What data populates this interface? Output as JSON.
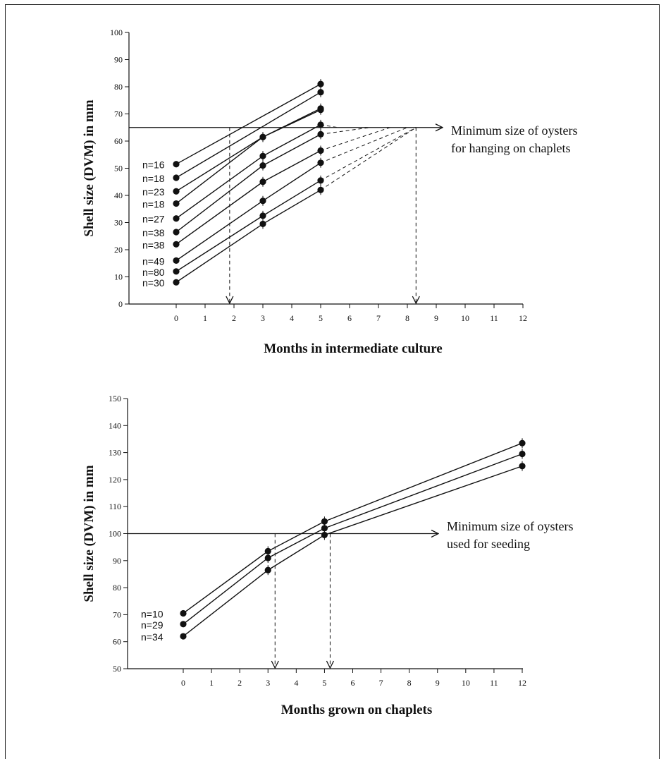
{
  "chart_data": [
    {
      "type": "line",
      "xlabel": "Months in intermediate culture",
      "ylabel": "Shell size (DVM) in mm",
      "xticks": [
        0,
        1,
        2,
        3,
        4,
        5,
        6,
        7,
        8,
        9,
        10,
        11,
        12
      ],
      "yticks": [
        0,
        10,
        20,
        30,
        40,
        50,
        60,
        70,
        80,
        90,
        100
      ],
      "xlim": [
        -1.6,
        12
      ],
      "ylim": [
        0,
        100
      ],
      "threshold": {
        "y": 65,
        "label_line1": "Minimum size of oysters",
        "label_line2": "for hanging on chaplets"
      },
      "drop_lines": [
        1.85,
        8.3
      ],
      "series": [
        {
          "name": "n=16",
          "x": [
            0,
            5
          ],
          "y": [
            51.5,
            81
          ]
        },
        {
          "name": "n=18",
          "x": [
            0,
            5
          ],
          "y": [
            46.5,
            78
          ]
        },
        {
          "name": "n=23",
          "x": [
            0,
            3,
            5
          ],
          "y": [
            41.5,
            61.5,
            71.5
          ]
        },
        {
          "name": "n=18",
          "x": [
            0,
            3,
            5
          ],
          "y": [
            37,
            61.5,
            72
          ]
        },
        {
          "name": "n=27",
          "x": [
            0,
            3,
            5
          ],
          "y": [
            31.5,
            54.5,
            66
          ]
        },
        {
          "name": "n=38",
          "x": [
            0,
            3,
            5
          ],
          "y": [
            26.5,
            51,
            62.5
          ]
        },
        {
          "name": "n=38",
          "x": [
            0,
            3,
            5
          ],
          "y": [
            22,
            45,
            56.5
          ]
        },
        {
          "name": "n=49",
          "x": [
            0,
            3,
            5
          ],
          "y": [
            16,
            38,
            52
          ]
        },
        {
          "name": "n=80",
          "x": [
            0,
            3,
            5
          ],
          "y": [
            12,
            32.5,
            45.5
          ]
        },
        {
          "name": "n=30",
          "x": [
            0,
            3,
            5
          ],
          "y": [
            8,
            29.5,
            42
          ]
        }
      ],
      "extrapolations": [
        {
          "x": [
            5,
            5.6
          ],
          "y": [
            66,
            65
          ]
        },
        {
          "x": [
            5,
            6.7
          ],
          "y": [
            62.5,
            65
          ]
        },
        {
          "x": [
            5,
            7.4
          ],
          "y": [
            56.5,
            65
          ]
        },
        {
          "x": [
            5,
            8.0
          ],
          "y": [
            52,
            65
          ]
        },
        {
          "x": [
            5,
            8.3
          ],
          "y": [
            45.5,
            65
          ]
        },
        {
          "x": [
            5,
            8.3
          ],
          "y": [
            42,
            65
          ]
        }
      ]
    },
    {
      "type": "line",
      "xlabel": "Months grown on chaplets",
      "ylabel": "Shell size (DVM) in mm",
      "xticks": [
        0,
        1,
        2,
        3,
        4,
        5,
        6,
        7,
        8,
        9,
        10,
        11,
        12
      ],
      "yticks": [
        50,
        60,
        70,
        80,
        90,
        100,
        110,
        120,
        130,
        140,
        150
      ],
      "xlim": [
        -1.8,
        12
      ],
      "ylim": [
        50,
        150
      ],
      "threshold": {
        "y": 100,
        "label_line1": "Minimum size of oysters",
        "label_line2": "used for seeding"
      },
      "drop_lines": [
        3.25,
        5.2
      ],
      "series": [
        {
          "name": "n=10",
          "x": [
            0,
            3,
            5,
            12
          ],
          "y": [
            70.5,
            93.5,
            104.5,
            133.5
          ]
        },
        {
          "name": "n=29",
          "x": [
            0,
            3,
            5,
            12
          ],
          "y": [
            66.5,
            91,
            102,
            129.5
          ]
        },
        {
          "name": "n=34",
          "x": [
            0,
            3,
            5,
            12
          ],
          "y": [
            62,
            86.5,
            99.5,
            125
          ]
        }
      ]
    }
  ]
}
